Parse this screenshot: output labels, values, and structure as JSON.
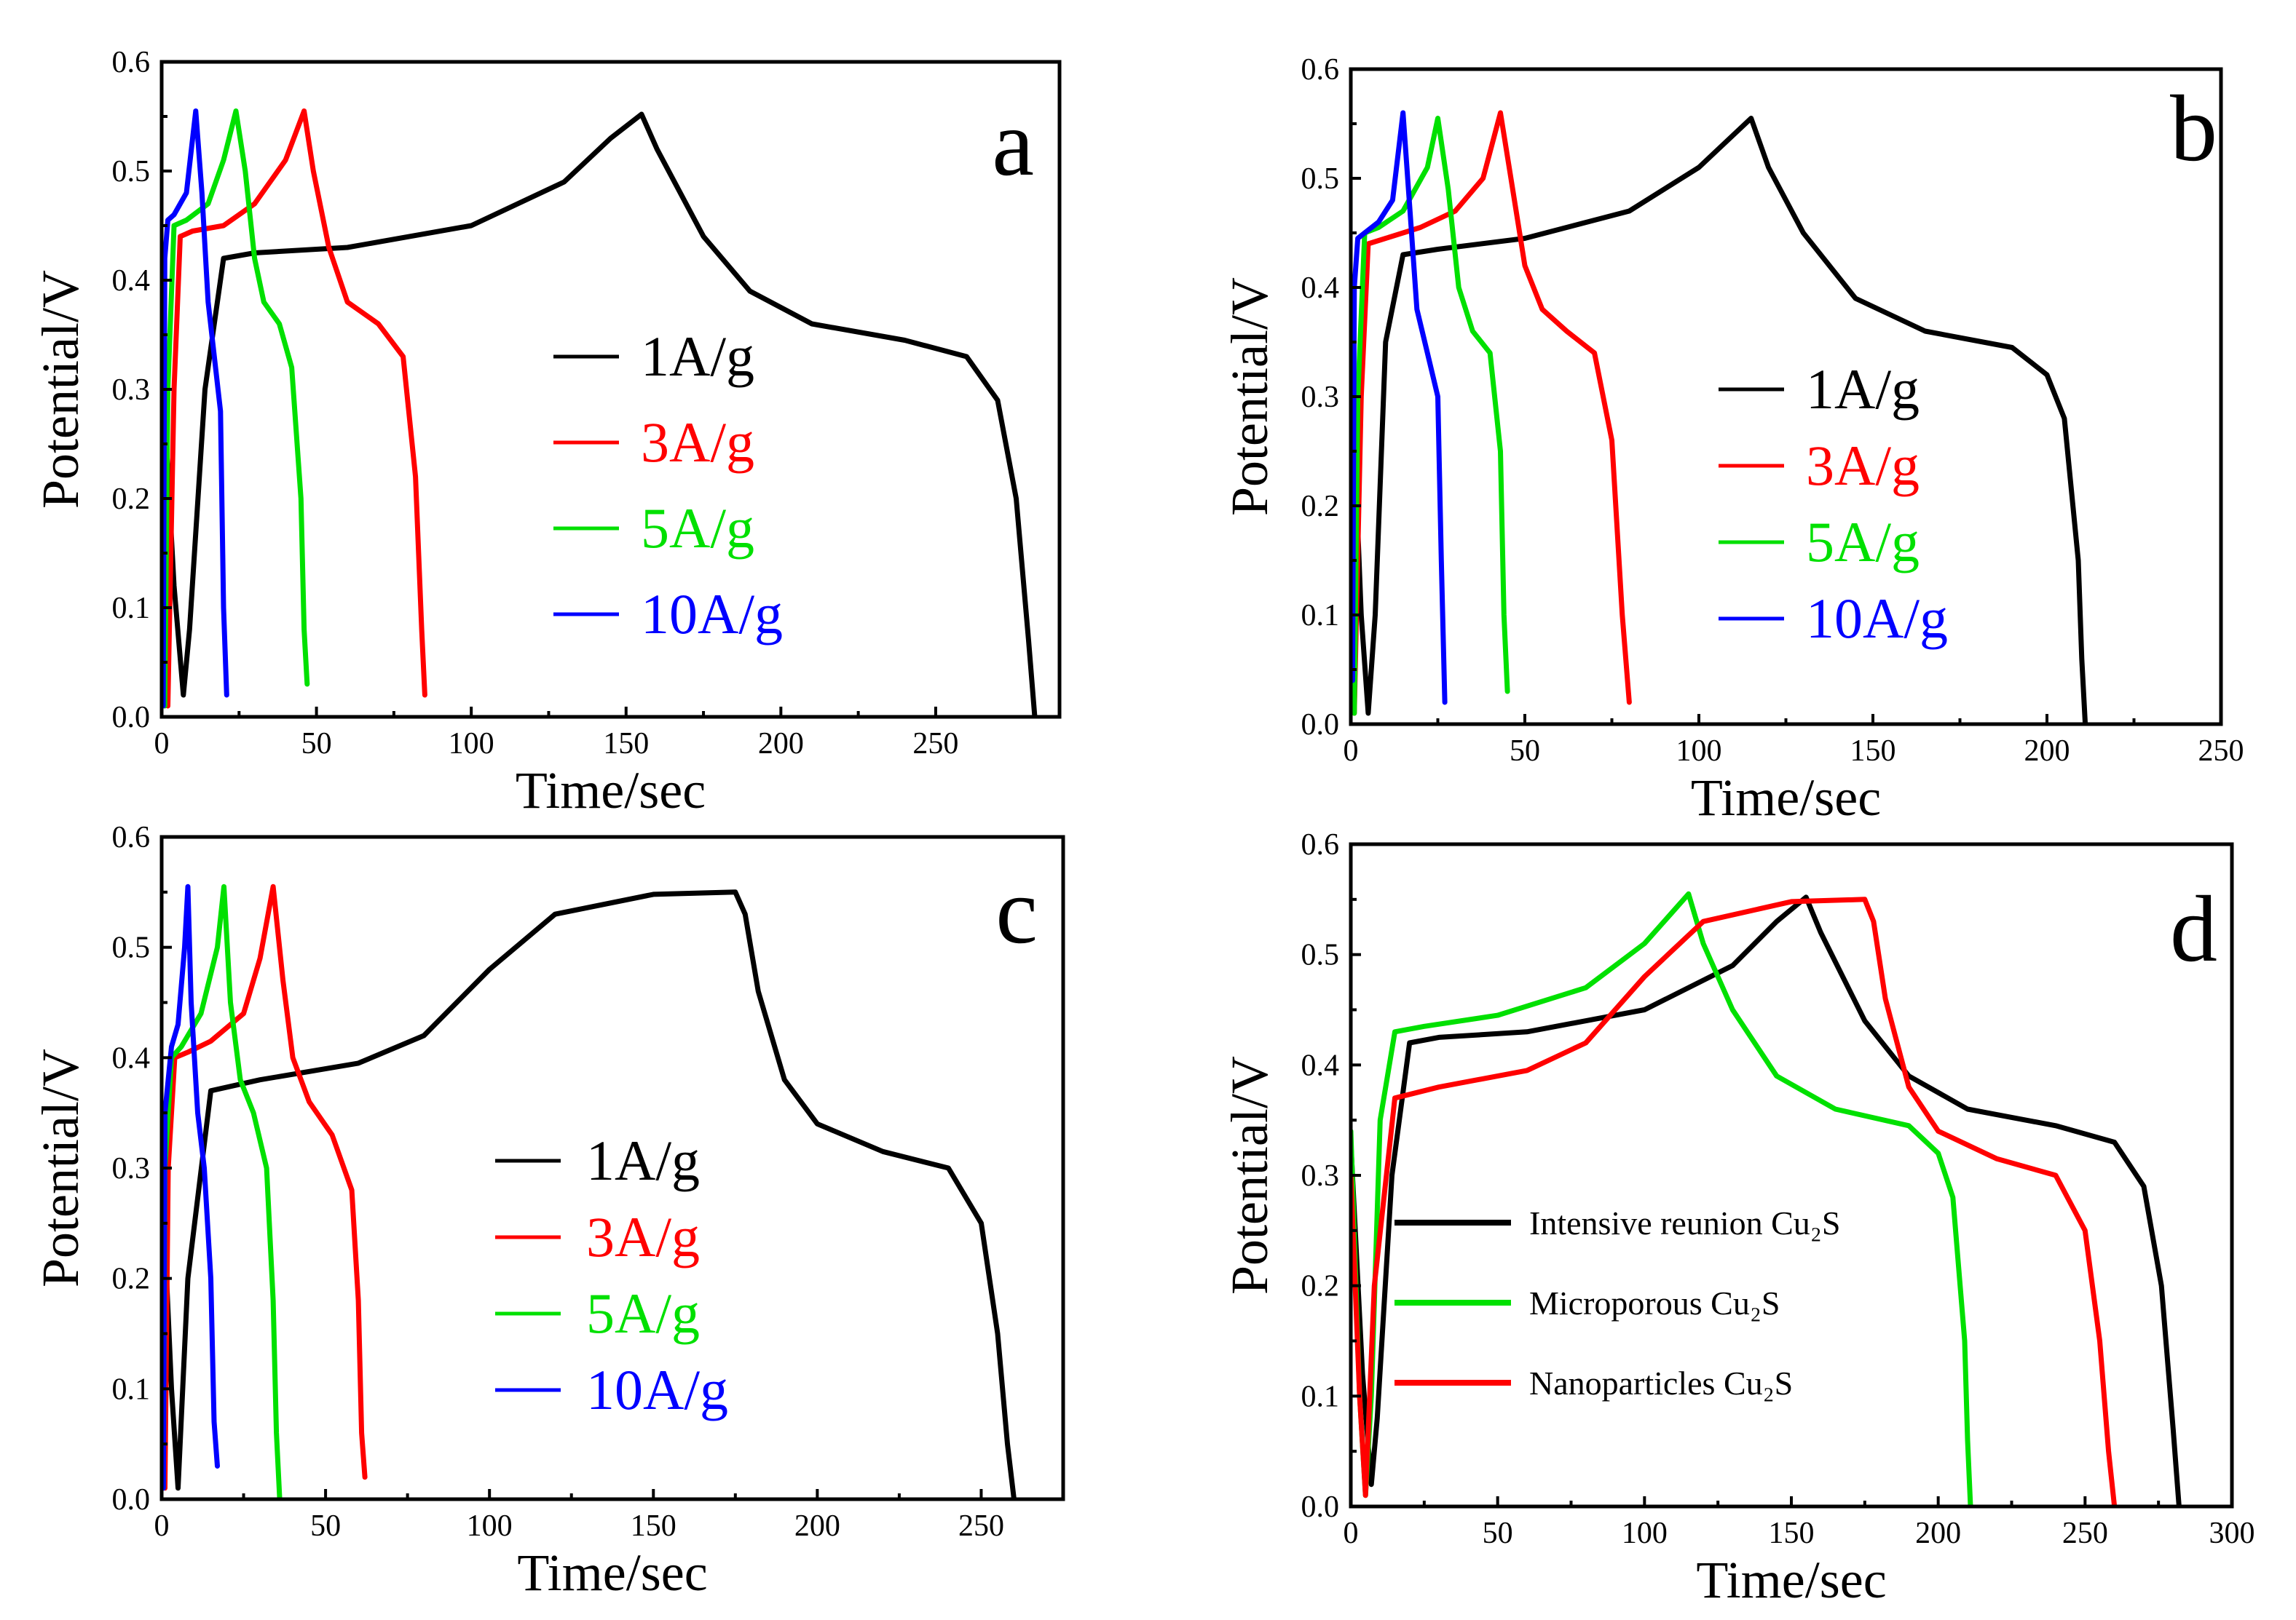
{
  "figure_colors": {
    "1A/g": "#000000",
    "3A/g": "#ff0000",
    "5A/g": "#00e000",
    "10A/g": "#0000ff"
  },
  "chart_data": [
    {
      "panel": "a",
      "type": "line",
      "xlabel": "Time/sec",
      "ylabel": "Potential/V",
      "xlim": [
        0,
        290
      ],
      "ylim": [
        0.0,
        0.6
      ],
      "xticks": [
        0,
        50,
        100,
        150,
        200,
        250
      ],
      "yticks": [
        0.0,
        0.1,
        0.2,
        0.3,
        0.4,
        0.5,
        0.6
      ],
      "legend_position": "center-right",
      "series": [
        {
          "name": "1A/g",
          "color": "#000000",
          "x": [
            0,
            4,
            7,
            9,
            14,
            20,
            30,
            60,
            100,
            130,
            145,
            155,
            160,
            175,
            190,
            210,
            240,
            260,
            270,
            276,
            280,
            282
          ],
          "y": [
            0.33,
            0.12,
            0.02,
            0.08,
            0.3,
            0.42,
            0.425,
            0.43,
            0.45,
            0.49,
            0.53,
            0.552,
            0.52,
            0.44,
            0.39,
            0.36,
            0.345,
            0.33,
            0.29,
            0.2,
            0.07,
            0.0
          ]
        },
        {
          "name": "3A/g",
          "color": "#ff0000",
          "x": [
            0,
            2,
            4,
            6,
            10,
            20,
            30,
            40,
            46,
            49,
            54,
            60,
            70,
            78,
            82,
            84,
            85
          ],
          "y": [
            0.2,
            0.01,
            0.3,
            0.44,
            0.445,
            0.45,
            0.47,
            0.51,
            0.555,
            0.5,
            0.43,
            0.38,
            0.36,
            0.33,
            0.22,
            0.08,
            0.02
          ]
        },
        {
          "name": "5A/g",
          "color": "#00e000",
          "x": [
            0,
            1,
            2,
            4,
            8,
            15,
            20,
            24,
            27,
            30,
            33,
            38,
            42,
            45,
            46,
            47
          ],
          "y": [
            0.3,
            0.01,
            0.3,
            0.45,
            0.455,
            0.47,
            0.51,
            0.555,
            0.5,
            0.42,
            0.38,
            0.36,
            0.32,
            0.2,
            0.08,
            0.03
          ]
        },
        {
          "name": "10A/g",
          "color": "#0000ff",
          "x": [
            0,
            0.5,
            1,
            2,
            4,
            8,
            11,
            13,
            15,
            17,
            19,
            20,
            21
          ],
          "y": [
            0.4,
            0.01,
            0.42,
            0.455,
            0.46,
            0.48,
            0.555,
            0.48,
            0.38,
            0.33,
            0.28,
            0.1,
            0.02
          ]
        }
      ],
      "legend": [
        "1A/g",
        "3A/g",
        "5A/g",
        "10A/g"
      ]
    },
    {
      "panel": "b",
      "type": "line",
      "xlabel": "Time/sec",
      "ylabel": "Potential/V",
      "xlim": [
        0,
        250
      ],
      "ylim": [
        0.0,
        0.6
      ],
      "xticks": [
        0,
        50,
        100,
        150,
        200,
        250
      ],
      "yticks": [
        0.0,
        0.1,
        0.2,
        0.3,
        0.4,
        0.5,
        0.6
      ],
      "legend_position": "center-right",
      "series": [
        {
          "name": "1A/g",
          "color": "#000000",
          "x": [
            0,
            3,
            5,
            7,
            10,
            15,
            25,
            50,
            80,
            100,
            110,
            115,
            120,
            130,
            145,
            165,
            190,
            200,
            205,
            209,
            210,
            211
          ],
          "y": [
            0.34,
            0.1,
            0.01,
            0.1,
            0.35,
            0.43,
            0.435,
            0.445,
            0.47,
            0.51,
            0.54,
            0.555,
            0.51,
            0.45,
            0.39,
            0.36,
            0.345,
            0.32,
            0.28,
            0.15,
            0.06,
            0.0
          ]
        },
        {
          "name": "3A/g",
          "color": "#ff0000",
          "x": [
            0,
            1,
            3,
            5,
            10,
            20,
            30,
            38,
            43,
            46,
            50,
            55,
            62,
            70,
            75,
            78,
            80
          ],
          "y": [
            0.3,
            0.01,
            0.3,
            0.44,
            0.445,
            0.455,
            0.47,
            0.5,
            0.56,
            0.5,
            0.42,
            0.38,
            0.36,
            0.34,
            0.26,
            0.1,
            0.02
          ]
        },
        {
          "name": "5A/g",
          "color": "#00e000",
          "x": [
            0,
            1,
            2,
            4,
            8,
            15,
            22,
            25,
            28,
            31,
            35,
            40,
            43,
            44,
            45
          ],
          "y": [
            0.3,
            0.01,
            0.3,
            0.45,
            0.455,
            0.47,
            0.51,
            0.555,
            0.49,
            0.4,
            0.36,
            0.34,
            0.25,
            0.1,
            0.03
          ]
        },
        {
          "name": "10A/g",
          "color": "#0000ff",
          "x": [
            0,
            0.5,
            1,
            2,
            4,
            8,
            12,
            15,
            17,
            19,
            22,
            25,
            26,
            27
          ],
          "y": [
            0.35,
            0.04,
            0.4,
            0.445,
            0.45,
            0.46,
            0.48,
            0.56,
            0.47,
            0.38,
            0.34,
            0.3,
            0.15,
            0.02
          ]
        }
      ],
      "legend": [
        "1A/g",
        "3A/g",
        "5A/g",
        "10A/g"
      ]
    },
    {
      "panel": "c",
      "type": "line",
      "xlabel": "Time/sec",
      "ylabel": "Potential/V",
      "xlim": [
        0,
        275
      ],
      "ylim": [
        0.0,
        0.6
      ],
      "xticks": [
        0,
        50,
        100,
        150,
        200,
        250
      ],
      "yticks": [
        0.0,
        0.1,
        0.2,
        0.3,
        0.4,
        0.5,
        0.6
      ],
      "legend_position": "center-right",
      "series": [
        {
          "name": "1A/g",
          "color": "#000000",
          "x": [
            0,
            3,
            5,
            8,
            15,
            30,
            60,
            80,
            100,
            120,
            150,
            175,
            178,
            182,
            190,
            200,
            220,
            240,
            250,
            255,
            258,
            260
          ],
          "y": [
            0.3,
            0.1,
            0.01,
            0.2,
            0.37,
            0.38,
            0.395,
            0.42,
            0.48,
            0.53,
            0.548,
            0.55,
            0.53,
            0.46,
            0.38,
            0.34,
            0.315,
            0.3,
            0.25,
            0.15,
            0.05,
            0.0
          ]
        },
        {
          "name": "3A/g",
          "color": "#ff0000",
          "x": [
            0,
            1,
            2,
            4,
            8,
            15,
            25,
            30,
            34,
            37,
            40,
            45,
            52,
            58,
            60,
            61,
            62
          ],
          "y": [
            0.05,
            0.01,
            0.3,
            0.4,
            0.405,
            0.415,
            0.44,
            0.49,
            0.555,
            0.47,
            0.4,
            0.36,
            0.33,
            0.28,
            0.18,
            0.06,
            0.02
          ]
        },
        {
          "name": "5A/g",
          "color": "#00e000",
          "x": [
            0,
            0.5,
            1,
            3,
            6,
            12,
            17,
            19,
            21,
            24,
            28,
            32,
            34,
            35,
            36
          ],
          "y": [
            0.1,
            0.01,
            0.3,
            0.4,
            0.41,
            0.44,
            0.5,
            0.555,
            0.45,
            0.38,
            0.35,
            0.3,
            0.18,
            0.06,
            0.0
          ]
        },
        {
          "name": "10A/g",
          "color": "#0000ff",
          "x": [
            0,
            0.5,
            1,
            3,
            5,
            7,
            8,
            9,
            11,
            13,
            15,
            16,
            17
          ],
          "y": [
            0.05,
            0.01,
            0.35,
            0.41,
            0.43,
            0.5,
            0.555,
            0.45,
            0.35,
            0.3,
            0.2,
            0.07,
            0.03
          ]
        }
      ],
      "legend": [
        "1A/g",
        "3A/g",
        "5A/g",
        "10A/g"
      ]
    },
    {
      "panel": "d",
      "type": "line",
      "xlabel": "Time/sec",
      "ylabel": "Potential/V",
      "xlim": [
        0,
        300
      ],
      "ylim": [
        0.0,
        0.6
      ],
      "xticks": [
        0,
        50,
        100,
        150,
        200,
        250,
        300
      ],
      "yticks": [
        0.0,
        0.1,
        0.2,
        0.3,
        0.4,
        0.5,
        0.6
      ],
      "legend_position": "lower-left",
      "series": [
        {
          "name": "Intensive reunion Cu₂S",
          "color": "#000000",
          "x": [
            0,
            4,
            7,
            9,
            14,
            20,
            30,
            60,
            100,
            130,
            145,
            155,
            160,
            175,
            190,
            210,
            240,
            260,
            270,
            276,
            280,
            282
          ],
          "y": [
            0.33,
            0.12,
            0.02,
            0.08,
            0.3,
            0.42,
            0.425,
            0.43,
            0.45,
            0.49,
            0.53,
            0.552,
            0.52,
            0.44,
            0.39,
            0.36,
            0.345,
            0.33,
            0.29,
            0.2,
            0.07,
            0.0
          ]
        },
        {
          "name": "Microporous Cu₂S",
          "color": "#00e000",
          "x": [
            0,
            3,
            5,
            7,
            10,
            15,
            25,
            50,
            80,
            100,
            110,
            115,
            120,
            130,
            145,
            165,
            190,
            200,
            205,
            209,
            210,
            211
          ],
          "y": [
            0.34,
            0.1,
            0.01,
            0.1,
            0.35,
            0.43,
            0.435,
            0.445,
            0.47,
            0.51,
            0.54,
            0.555,
            0.51,
            0.45,
            0.39,
            0.36,
            0.345,
            0.32,
            0.28,
            0.15,
            0.06,
            0.0
          ]
        },
        {
          "name": "Nanoparticles Cu₂S",
          "color": "#ff0000",
          "x": [
            0,
            3,
            5,
            8,
            15,
            30,
            60,
            80,
            100,
            120,
            150,
            175,
            178,
            182,
            190,
            200,
            220,
            240,
            250,
            255,
            258,
            260
          ],
          "y": [
            0.3,
            0.1,
            0.01,
            0.2,
            0.37,
            0.38,
            0.395,
            0.42,
            0.48,
            0.53,
            0.548,
            0.55,
            0.53,
            0.46,
            0.38,
            0.34,
            0.315,
            0.3,
            0.25,
            0.15,
            0.05,
            0.0
          ]
        }
      ],
      "legend": [
        "Intensive reunion Cu₂S",
        "Microporous Cu₂S",
        "Nanoparticles Cu₂S"
      ]
    }
  ]
}
